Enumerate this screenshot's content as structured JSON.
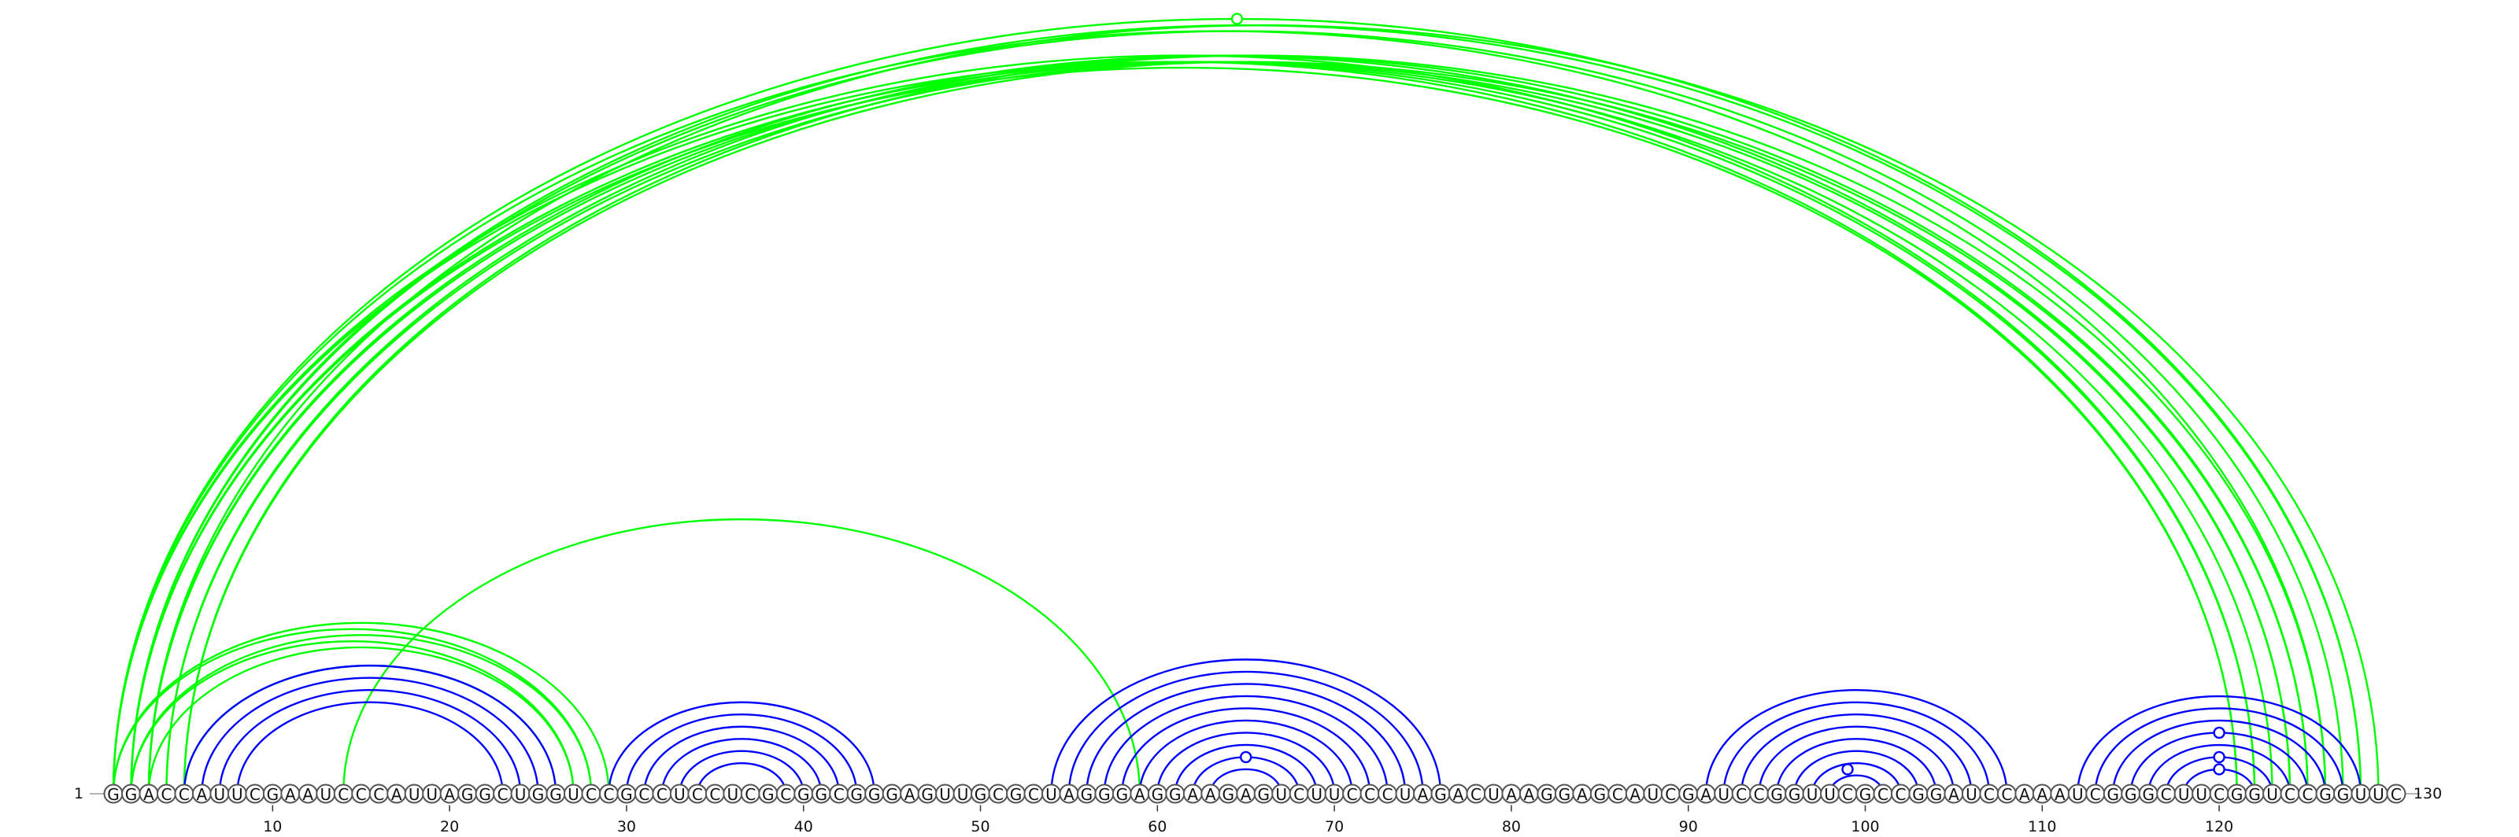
{
  "sequence": "GGACCAUUCGAAUCCCAUUAGGCUGGUCCGCCUCCUCGCGGCGGGAGUUGCGCUAGGGAGGAAGAGUCUUCCCUAGACUAAGGAGCAUCGAUCCGGUUCGCCGGAUCCAAAUCGGGCUUCGGUCCGGUUC",
  "start_label": "1",
  "end_label": "130",
  "ticks": [
    "10",
    "20",
    "30",
    "40",
    "50",
    "60",
    "70",
    "80",
    "90",
    "100",
    "110",
    "120"
  ],
  "colors": {
    "primary_arcs": "#0000ff",
    "secondary_arcs": "#00ff00",
    "marker_fill": "#ffffff"
  },
  "arc_groups": [
    {
      "color": "#00ff00",
      "pairs": [
        [
          1,
          121
        ],
        [
          1,
          122
        ],
        [
          2,
          121
        ],
        [
          2,
          122
        ],
        [
          3,
          123
        ],
        [
          3,
          124
        ],
        [
          4,
          124
        ],
        [
          4,
          125
        ],
        [
          5,
          125
        ],
        [
          5,
          126
        ],
        [
          2,
          127
        ],
        [
          1,
          128
        ],
        [
          2,
          128
        ],
        [
          3,
          129
        ],
        [
          1,
          126
        ]
      ]
    },
    {
      "color": "#00ff00",
      "pairs": [
        [
          1,
          28
        ],
        [
          1,
          29
        ],
        [
          2,
          27
        ],
        [
          2,
          28
        ],
        [
          3,
          27
        ],
        [
          5,
          26
        ],
        [
          14,
          59
        ]
      ]
    },
    {
      "color": "#0000ff",
      "pairs": [
        [
          5,
          26
        ],
        [
          6,
          25
        ],
        [
          7,
          24
        ],
        [
          8,
          23
        ]
      ]
    },
    {
      "color": "#0000ff",
      "pairs": [
        [
          29,
          44
        ],
        [
          30,
          43
        ],
        [
          31,
          42
        ],
        [
          32,
          41
        ],
        [
          33,
          40
        ],
        [
          34,
          39
        ]
      ]
    },
    {
      "color": "#0000ff",
      "pairs": [
        [
          54,
          76
        ],
        [
          55,
          75
        ],
        [
          56,
          74
        ],
        [
          57,
          73
        ],
        [
          58,
          72
        ],
        [
          59,
          71
        ],
        [
          60,
          70
        ],
        [
          61,
          69
        ],
        [
          62,
          68
        ],
        [
          63,
          67
        ]
      ]
    },
    {
      "color": "#0000ff",
      "pairs": [
        [
          91,
          108
        ],
        [
          92,
          107
        ],
        [
          93,
          106
        ],
        [
          94,
          105
        ],
        [
          95,
          104
        ],
        [
          96,
          103
        ],
        [
          97,
          102
        ],
        [
          98,
          101
        ]
      ]
    },
    {
      "color": "#0000ff",
      "pairs": [
        [
          112,
          128
        ],
        [
          113,
          127
        ],
        [
          114,
          126
        ],
        [
          115,
          125
        ],
        [
          116,
          124
        ],
        [
          117,
          123
        ],
        [
          118,
          122
        ]
      ]
    }
  ],
  "arc_markers": [
    {
      "pair": [
        1,
        128
      ],
      "color": "#00ff00"
    },
    {
      "pair": [
        62,
        68
      ],
      "color": "#0000ff"
    },
    {
      "pair": [
        97,
        101
      ],
      "color": "#0000ff"
    },
    {
      "pair": [
        115,
        125
      ],
      "color": "#0000ff"
    },
    {
      "pair": [
        117,
        123
      ],
      "color": "#0000ff"
    },
    {
      "pair": [
        118,
        122
      ],
      "color": "#0000ff"
    }
  ]
}
